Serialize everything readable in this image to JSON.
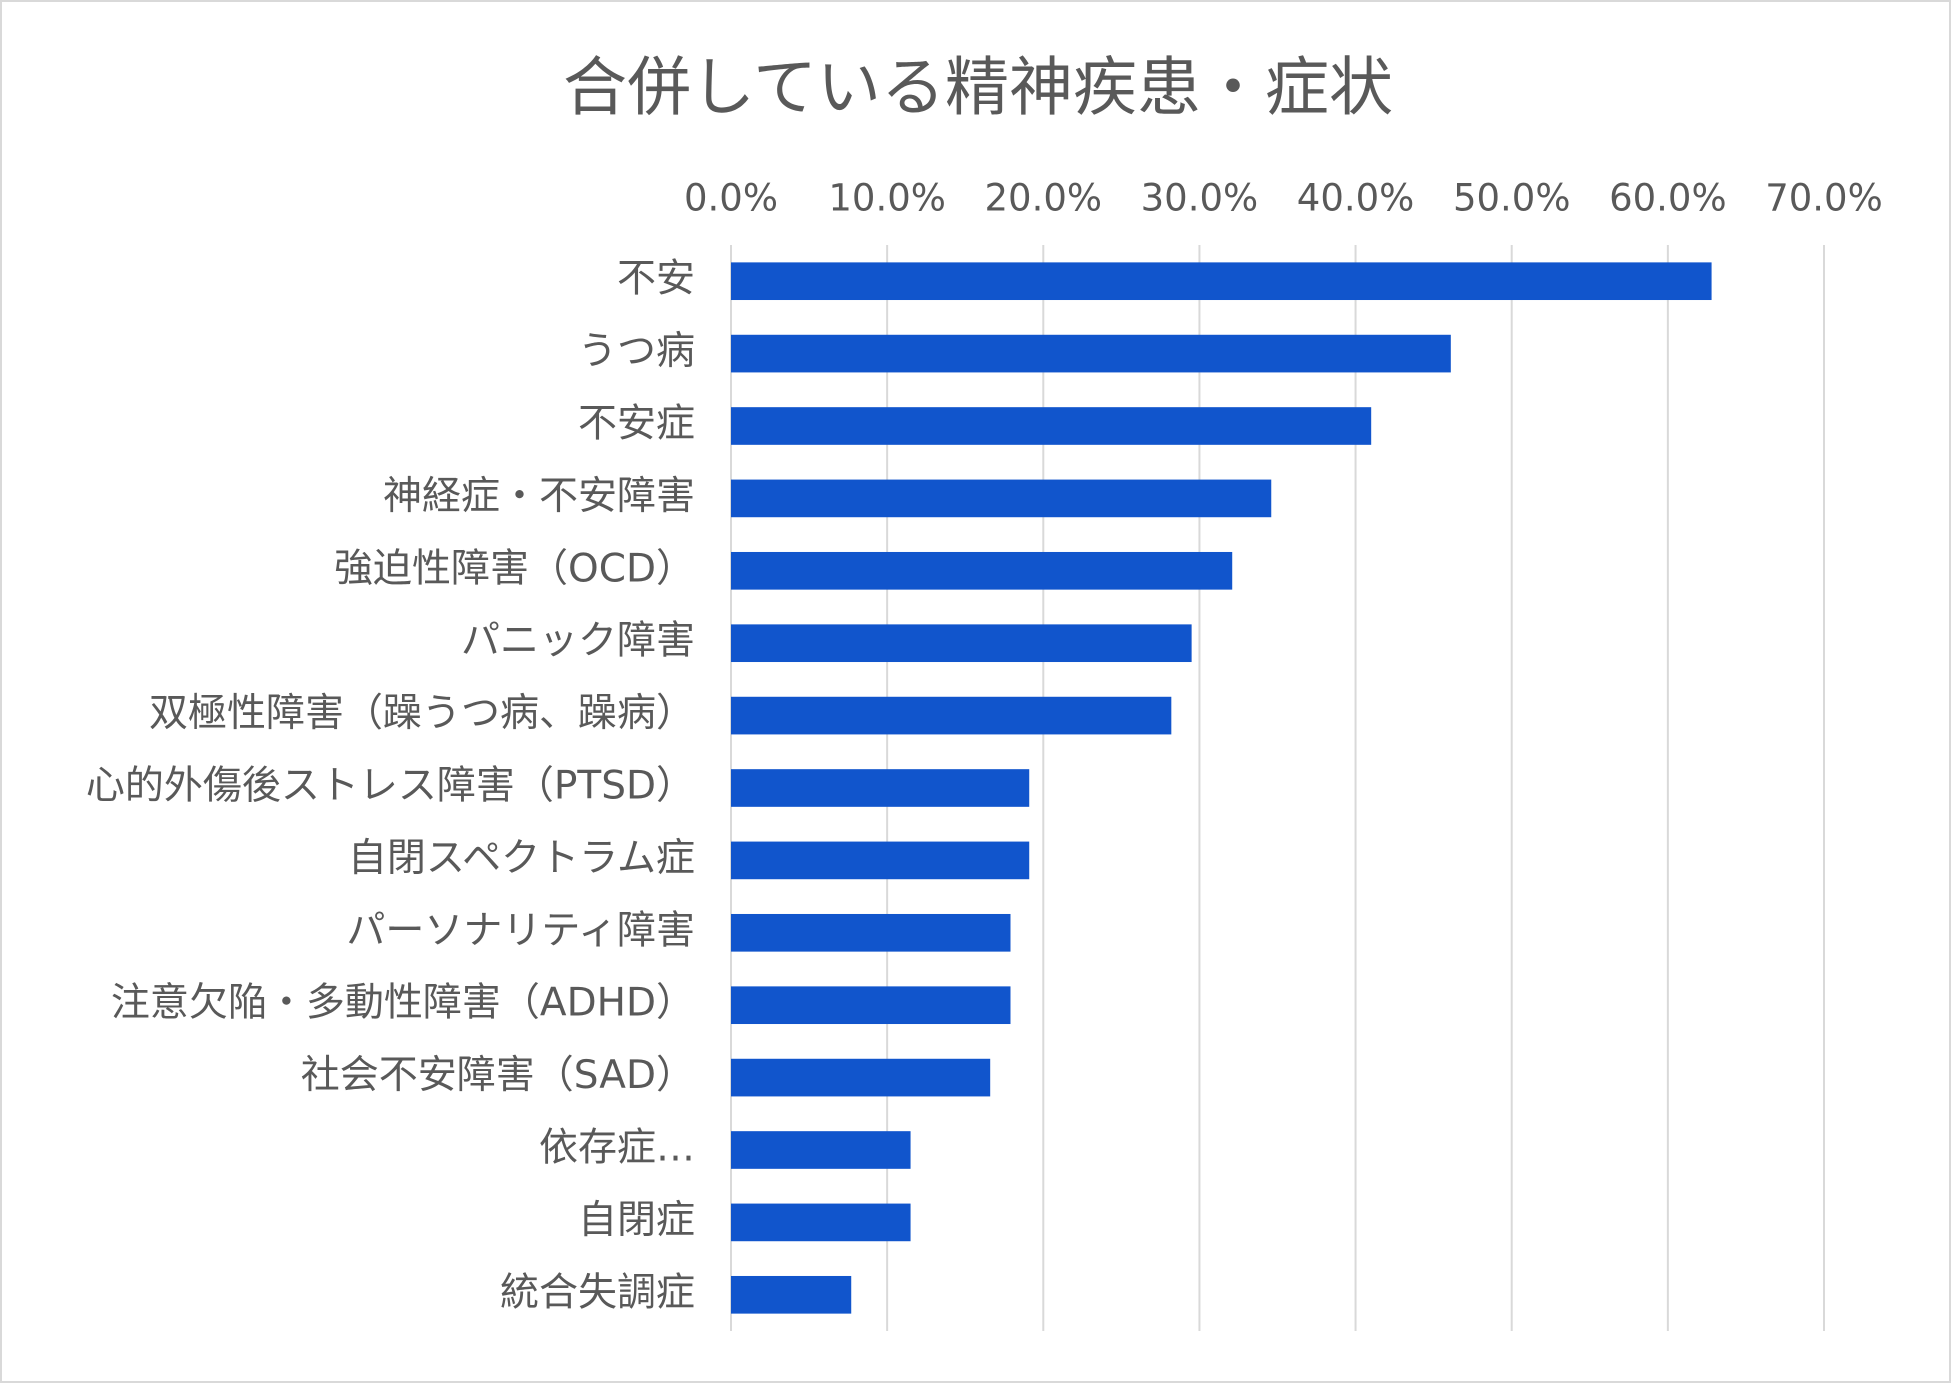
{
  "chart_data": {
    "type": "bar",
    "orientation": "horizontal",
    "title": "合併している精神疾患・症状",
    "categories": [
      "不安",
      "うつ病",
      "不安症",
      "神経症・不安障害",
      "強迫性障害（OCD）",
      "パニック障害",
      "双極性障害（躁うつ病、躁病）",
      "心的外傷後ストレス障害（PTSD）",
      "自閉スペクトラム症",
      "パーソナリティ障害",
      "注意欠陥・多動性障害（ADHD）",
      "社会不安障害（SAD）",
      "依存症…",
      "自閉症",
      "統合失調症"
    ],
    "values": [
      62.8,
      46.1,
      41.0,
      34.6,
      32.1,
      29.5,
      28.2,
      19.1,
      19.1,
      17.9,
      17.9,
      16.6,
      11.5,
      11.5,
      7.7
    ],
    "color": "#1155cc",
    "xlim": [
      0,
      70
    ],
    "xticks": [
      {
        "value": 0,
        "label": "0.0%"
      },
      {
        "value": 10,
        "label": "10.0%"
      },
      {
        "value": 20,
        "label": "20.0%"
      },
      {
        "value": 30,
        "label": "30.0%"
      },
      {
        "value": 40,
        "label": "40.0%"
      },
      {
        "value": 50,
        "label": "50.0%"
      },
      {
        "value": 60,
        "label": "60.0%"
      },
      {
        "value": 70,
        "label": "70.0%"
      }
    ],
    "grid": true
  }
}
